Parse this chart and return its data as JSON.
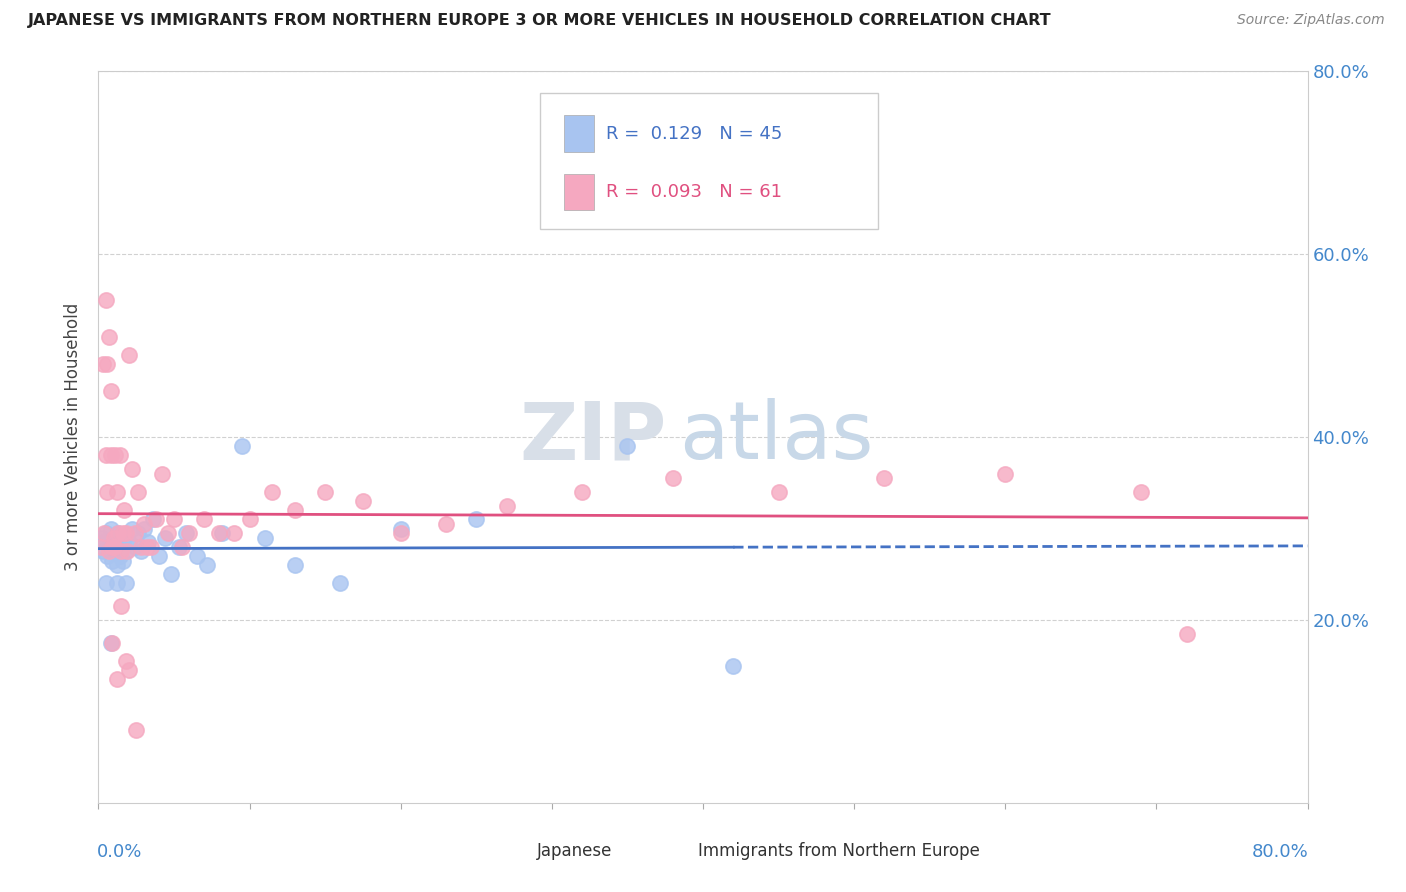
{
  "title": "JAPANESE VS IMMIGRANTS FROM NORTHERN EUROPE 3 OR MORE VEHICLES IN HOUSEHOLD CORRELATION CHART",
  "source": "Source: ZipAtlas.com",
  "ylabel": "3 or more Vehicles in Household",
  "watermark_zip": "ZIP",
  "watermark_atlas": "atlas",
  "japanese_color": "#a8c4f0",
  "northern_color": "#f5a8c0",
  "japanese_line_color": "#4472c4",
  "northern_line_color": "#e05080",
  "right_ytick_vals": [
    0.2,
    0.4,
    0.6,
    0.8
  ],
  "xlim": [
    0.0,
    0.8
  ],
  "ylim": [
    0.0,
    0.8
  ],
  "jp_R": 0.129,
  "jp_N": 45,
  "ne_R": 0.093,
  "ne_N": 61,
  "japanese_x": [
    0.002,
    0.003,
    0.004,
    0.005,
    0.006,
    0.007,
    0.008,
    0.009,
    0.01,
    0.011,
    0.012,
    0.013,
    0.014,
    0.015,
    0.016,
    0.017,
    0.018,
    0.02,
    0.022,
    0.024,
    0.026,
    0.028,
    0.03,
    0.033,
    0.036,
    0.04,
    0.044,
    0.048,
    0.053,
    0.058,
    0.065,
    0.072,
    0.082,
    0.095,
    0.11,
    0.13,
    0.16,
    0.2,
    0.25,
    0.35,
    0.42,
    0.005,
    0.008,
    0.012,
    0.018
  ],
  "japanese_y": [
    0.29,
    0.275,
    0.285,
    0.295,
    0.27,
    0.28,
    0.3,
    0.265,
    0.285,
    0.275,
    0.26,
    0.295,
    0.27,
    0.28,
    0.265,
    0.29,
    0.275,
    0.285,
    0.3,
    0.28,
    0.295,
    0.275,
    0.3,
    0.285,
    0.31,
    0.27,
    0.29,
    0.25,
    0.28,
    0.295,
    0.27,
    0.26,
    0.295,
    0.39,
    0.29,
    0.26,
    0.24,
    0.3,
    0.31,
    0.39,
    0.15,
    0.24,
    0.175,
    0.24,
    0.24
  ],
  "northern_x": [
    0.002,
    0.003,
    0.004,
    0.005,
    0.006,
    0.007,
    0.008,
    0.009,
    0.01,
    0.011,
    0.012,
    0.013,
    0.014,
    0.015,
    0.016,
    0.017,
    0.018,
    0.019,
    0.02,
    0.022,
    0.024,
    0.026,
    0.028,
    0.03,
    0.032,
    0.035,
    0.038,
    0.042,
    0.046,
    0.05,
    0.055,
    0.06,
    0.07,
    0.08,
    0.09,
    0.1,
    0.115,
    0.13,
    0.15,
    0.175,
    0.2,
    0.23,
    0.27,
    0.32,
    0.38,
    0.45,
    0.52,
    0.6,
    0.69,
    0.72,
    0.005,
    0.006,
    0.007,
    0.008,
    0.009,
    0.01,
    0.012,
    0.015,
    0.018,
    0.02,
    0.025
  ],
  "northern_y": [
    0.28,
    0.48,
    0.295,
    0.38,
    0.34,
    0.275,
    0.38,
    0.28,
    0.29,
    0.38,
    0.34,
    0.295,
    0.38,
    0.275,
    0.295,
    0.32,
    0.295,
    0.275,
    0.49,
    0.365,
    0.295,
    0.34,
    0.28,
    0.305,
    0.28,
    0.28,
    0.31,
    0.36,
    0.295,
    0.31,
    0.28,
    0.295,
    0.31,
    0.295,
    0.295,
    0.31,
    0.34,
    0.32,
    0.34,
    0.33,
    0.295,
    0.305,
    0.325,
    0.34,
    0.355,
    0.34,
    0.355,
    0.36,
    0.34,
    0.185,
    0.55,
    0.48,
    0.51,
    0.45,
    0.175,
    0.28,
    0.135,
    0.215,
    0.155,
    0.145,
    0.08
  ]
}
